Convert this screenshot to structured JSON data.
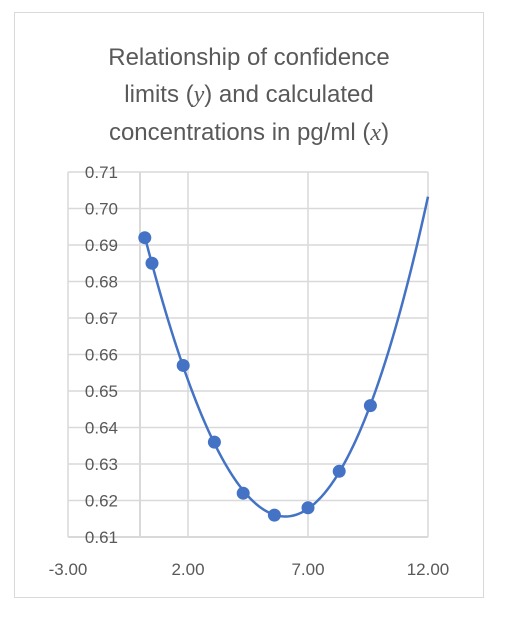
{
  "chart_data": {
    "type": "scatter",
    "title_lines": [
      [
        "Relationship of confidence"
      ],
      [
        "limits (",
        "y",
        ") and calculated"
      ],
      [
        "concentrations in pg/ml (",
        "x",
        ")"
      ]
    ],
    "xlabel": "",
    "ylabel": "",
    "xlim": [
      -3.0,
      12.0
    ],
    "ylim": [
      0.61,
      0.71
    ],
    "x_ticks": [
      "-3.00",
      "2.00",
      "7.00",
      "12.00"
    ],
    "x_tick_values": [
      -3,
      2,
      7,
      12
    ],
    "y_ticks": [
      "0.71",
      "0.70",
      "0.69",
      "0.68",
      "0.67",
      "0.66",
      "0.65",
      "0.64",
      "0.63",
      "0.62",
      "0.61"
    ],
    "y_tick_values": [
      0.71,
      0.7,
      0.69,
      0.68,
      0.67,
      0.66,
      0.65,
      0.64,
      0.63,
      0.62,
      0.61
    ],
    "grid": true,
    "series": [
      {
        "points": [
          {
            "x": 0.2,
            "y": 0.692
          },
          {
            "x": 0.5,
            "y": 0.685
          },
          {
            "x": 1.8,
            "y": 0.657
          },
          {
            "x": 3.1,
            "y": 0.636
          },
          {
            "x": 4.3,
            "y": 0.622
          },
          {
            "x": 5.6,
            "y": 0.616
          },
          {
            "x": 7.0,
            "y": 0.618
          },
          {
            "x": 8.3,
            "y": 0.628
          },
          {
            "x": 9.6,
            "y": 0.646
          }
        ],
        "trendline": {
          "type": "polynomial",
          "x_range": [
            0.2,
            12.0
          ]
        }
      }
    ],
    "colors": {
      "series": "#4472c4",
      "grid": "#d9d9d9",
      "text": "#595959"
    }
  }
}
